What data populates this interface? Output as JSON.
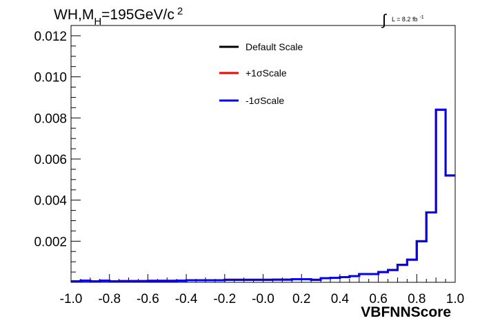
{
  "chart_data": {
    "type": "line",
    "title": {
      "prefix": "WH,M",
      "subscript": "H",
      "value": "=195GeV/c",
      "superscript": "2"
    },
    "luminosity": {
      "integral_symbol": "∫",
      "text": "L = 8.2 fb",
      "superscript": "-1"
    },
    "xlabel": "VBFNNScore",
    "ylabel": "",
    "xlim": [
      -1.0,
      1.0
    ],
    "ylim": [
      0,
      0.0125
    ],
    "x_tick_labels": [
      "-1.0",
      "-0.8",
      "-0.6",
      "-0.4",
      "-0.2",
      "-0.0",
      "0.2",
      "0.4",
      "0.6",
      "0.8",
      "1.0"
    ],
    "x_tick_values": [
      -1.0,
      -0.8,
      -0.6,
      -0.4,
      -0.2,
      0.0,
      0.2,
      0.4,
      0.6,
      0.8,
      1.0
    ],
    "y_tick_labels": [
      "0.002",
      "0.004",
      "0.006",
      "0.008",
      "0.010",
      "0.012"
    ],
    "y_tick_values": [
      0.002,
      0.004,
      0.006,
      0.008,
      0.01,
      0.012
    ],
    "grid": false,
    "legend_position": "top-center",
    "bin_edges": [
      -1.0,
      -0.95,
      -0.9,
      -0.85,
      -0.8,
      -0.75,
      -0.7,
      -0.65,
      -0.6,
      -0.55,
      -0.5,
      -0.45,
      -0.4,
      -0.35,
      -0.3,
      -0.25,
      -0.2,
      -0.15,
      -0.1,
      -0.05,
      0.0,
      0.05,
      0.1,
      0.15,
      0.2,
      0.25,
      0.3,
      0.35,
      0.4,
      0.45,
      0.5,
      0.55,
      0.6,
      0.65,
      0.7,
      0.75,
      0.8,
      0.85,
      0.9,
      0.95,
      1.0
    ],
    "series": [
      {
        "name": "Default Scale",
        "color": "#000000",
        "values": [
          5e-05,
          8e-05,
          5e-05,
          8e-05,
          5e-05,
          6e-05,
          6e-05,
          6e-05,
          7e-05,
          7e-05,
          7e-05,
          8e-05,
          0.0001,
          0.0001,
          0.0001,
          0.0001,
          0.00012,
          0.00012,
          0.00012,
          0.00012,
          0.00012,
          0.00013,
          0.00013,
          0.00015,
          0.00015,
          0.00012,
          0.0002,
          0.00022,
          0.00025,
          0.0003,
          0.0004,
          0.0004,
          0.0005,
          0.0006,
          0.00085,
          0.0011,
          0.002,
          0.0034,
          0.0084,
          0.0052
        ]
      },
      {
        "name": "+1σScale",
        "color": "#ff0000",
        "values": [
          5e-05,
          8e-05,
          5e-05,
          8e-05,
          5e-05,
          6e-05,
          6e-05,
          6e-05,
          7e-05,
          7e-05,
          7e-05,
          8e-05,
          0.0001,
          0.0001,
          0.0001,
          0.0001,
          0.00012,
          0.00012,
          0.00012,
          0.00012,
          0.00012,
          0.00013,
          0.00013,
          0.00015,
          0.00015,
          0.00012,
          0.0002,
          0.00022,
          0.00025,
          0.0003,
          0.0004,
          0.0004,
          0.0005,
          0.0006,
          0.00085,
          0.0011,
          0.002,
          0.0034,
          0.0084,
          0.0052
        ]
      },
      {
        "name": "-1σScale",
        "color": "#0000ff",
        "values": [
          5e-05,
          8e-05,
          5e-05,
          8e-05,
          5e-05,
          6e-05,
          6e-05,
          6e-05,
          7e-05,
          7e-05,
          7e-05,
          8e-05,
          0.0001,
          0.0001,
          0.0001,
          0.0001,
          0.00012,
          0.00012,
          0.00012,
          0.00012,
          0.00012,
          0.00013,
          0.00013,
          0.00015,
          0.00015,
          0.00012,
          0.0002,
          0.00022,
          0.00025,
          0.0003,
          0.0004,
          0.0004,
          0.0005,
          0.0006,
          0.00085,
          0.0011,
          0.002,
          0.0034,
          0.0084,
          0.0052
        ]
      }
    ]
  }
}
